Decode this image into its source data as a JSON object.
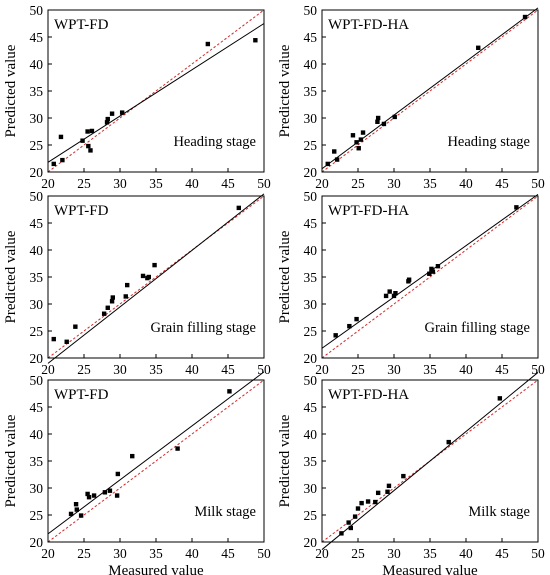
{
  "chart_data": [
    {
      "type": "scatter",
      "model": "WPT-FD",
      "stage": "Heading stage",
      "xlabel": "",
      "ylabel": "Predicted value",
      "xticks": [
        20,
        25,
        30,
        35,
        40,
        45,
        50
      ],
      "yticks": [
        20,
        25,
        30,
        35,
        40,
        45,
        50
      ],
      "xlim": [
        20,
        50
      ],
      "ylim": [
        20,
        50
      ],
      "points": [
        [
          20.8,
          21.5
        ],
        [
          21.8,
          26.5
        ],
        [
          22.0,
          22.2
        ],
        [
          24.8,
          25.8
        ],
        [
          25.5,
          27.5
        ],
        [
          25.6,
          24.8
        ],
        [
          25.9,
          24.0
        ],
        [
          26.1,
          27.6
        ],
        [
          28.2,
          29.2
        ],
        [
          28.3,
          29.8
        ],
        [
          28.9,
          30.8
        ],
        [
          30.3,
          31.0
        ],
        [
          42.2,
          43.7
        ],
        [
          48.8,
          44.4
        ]
      ],
      "fit_line": [
        [
          20,
          21.8
        ],
        [
          50,
          47.5
        ]
      ],
      "reference_line": [
        [
          20,
          20
        ],
        [
          50,
          50
        ]
      ]
    },
    {
      "type": "scatter",
      "model": "WPT-FD-HA",
      "stage": "Heading stage",
      "xlabel": "",
      "ylabel": "Predicted value",
      "xticks": [
        20,
        25,
        30,
        35,
        40,
        45,
        50
      ],
      "yticks": [
        20,
        25,
        30,
        35,
        40,
        45,
        50
      ],
      "xlim": [
        20,
        50
      ],
      "ylim": [
        20,
        50
      ],
      "points": [
        [
          20.8,
          21.5
        ],
        [
          21.7,
          23.8
        ],
        [
          22.1,
          22.3
        ],
        [
          24.3,
          26.8
        ],
        [
          24.8,
          25.5
        ],
        [
          25.1,
          24.4
        ],
        [
          25.4,
          26.0
        ],
        [
          25.7,
          27.3
        ],
        [
          27.7,
          29.3
        ],
        [
          27.8,
          30.0
        ],
        [
          28.6,
          28.9
        ],
        [
          30.1,
          30.2
        ],
        [
          41.7,
          43.0
        ],
        [
          48.2,
          48.7
        ]
      ],
      "fit_line": [
        [
          20,
          20.6
        ],
        [
          50,
          50.4
        ]
      ],
      "reference_line": [
        [
          20,
          20
        ],
        [
          50,
          50
        ]
      ]
    },
    {
      "type": "scatter",
      "model": "WPT-FD",
      "stage": "Grain filling stage",
      "xlabel": "",
      "ylabel": "Predicted value",
      "xticks": [
        20,
        25,
        30,
        35,
        40,
        45,
        50
      ],
      "yticks": [
        20,
        25,
        30,
        35,
        40,
        45,
        50
      ],
      "xlim": [
        20,
        50
      ],
      "ylim": [
        20,
        50
      ],
      "points": [
        [
          20.8,
          23.5
        ],
        [
          22.6,
          23.0
        ],
        [
          23.8,
          25.8
        ],
        [
          27.8,
          28.2
        ],
        [
          28.3,
          29.3
        ],
        [
          28.9,
          30.5
        ],
        [
          29.0,
          31.2
        ],
        [
          30.8,
          31.4
        ],
        [
          31.0,
          33.5
        ],
        [
          33.2,
          35.2
        ],
        [
          33.8,
          34.8
        ],
        [
          34.0,
          35.0
        ],
        [
          34.8,
          37.2
        ],
        [
          46.5,
          47.8
        ]
      ],
      "fit_line": [
        [
          20,
          19.0
        ],
        [
          50,
          50.4
        ]
      ],
      "reference_line": [
        [
          20,
          20
        ],
        [
          50,
          50
        ]
      ]
    },
    {
      "type": "scatter",
      "model": "WPT-FD-HA",
      "stage": "Grain filling stage",
      "xlabel": "",
      "ylabel": "Predicted value",
      "xticks": [
        20,
        25,
        30,
        35,
        40,
        45,
        50
      ],
      "yticks": [
        20,
        25,
        30,
        35,
        40,
        45,
        50
      ],
      "xlim": [
        20,
        50
      ],
      "ylim": [
        20,
        50
      ],
      "points": [
        [
          21.9,
          24.2
        ],
        [
          23.8,
          25.9
        ],
        [
          24.8,
          27.2
        ],
        [
          28.9,
          31.5
        ],
        [
          29.4,
          32.3
        ],
        [
          30.0,
          31.5
        ],
        [
          30.2,
          32.0
        ],
        [
          32.0,
          34.2
        ],
        [
          32.1,
          34.5
        ],
        [
          34.9,
          35.6
        ],
        [
          35.2,
          36.5
        ],
        [
          35.4,
          36.0
        ],
        [
          36.1,
          37.0
        ],
        [
          47.0,
          47.9
        ]
      ],
      "fit_line": [
        [
          20,
          21.8
        ],
        [
          50,
          50.3
        ]
      ],
      "reference_line": [
        [
          20,
          20
        ],
        [
          50,
          50
        ]
      ]
    },
    {
      "type": "scatter",
      "model": "WPT-FD",
      "stage": "Milk stage",
      "xlabel": "Measured value",
      "ylabel": "Predicted value",
      "xticks": [
        20,
        25,
        30,
        35,
        40,
        45,
        50
      ],
      "yticks": [
        20,
        25,
        30,
        35,
        40,
        45,
        50
      ],
      "xlim": [
        20,
        50
      ],
      "ylim": [
        20,
        50
      ],
      "points": [
        [
          23.2,
          25.2
        ],
        [
          23.9,
          27.0
        ],
        [
          24.0,
          26.0
        ],
        [
          24.6,
          24.9
        ],
        [
          25.5,
          28.9
        ],
        [
          25.7,
          28.3
        ],
        [
          26.4,
          28.6
        ],
        [
          27.9,
          29.2
        ],
        [
          28.6,
          29.5
        ],
        [
          29.6,
          28.6
        ],
        [
          29.7,
          32.6
        ],
        [
          31.7,
          35.9
        ],
        [
          38.0,
          37.3
        ],
        [
          45.2,
          47.9
        ]
      ],
      "fit_line": [
        [
          20,
          21.5
        ],
        [
          50,
          51.5
        ]
      ],
      "reference_line": [
        [
          20,
          20
        ],
        [
          50,
          50
        ]
      ]
    },
    {
      "type": "scatter",
      "model": "WPT-FD-HA",
      "stage": "Milk stage",
      "xlabel": "Measured value",
      "ylabel": "Predicted value",
      "xticks": [
        20,
        25,
        30,
        35,
        40,
        45,
        50
      ],
      "yticks": [
        20,
        25,
        30,
        35,
        40,
        45,
        50
      ],
      "xlim": [
        20,
        50
      ],
      "ylim": [
        20,
        50
      ],
      "points": [
        [
          22.7,
          21.6
        ],
        [
          23.7,
          23.6
        ],
        [
          24.0,
          22.6
        ],
        [
          24.6,
          24.7
        ],
        [
          25.0,
          26.2
        ],
        [
          25.5,
          27.2
        ],
        [
          26.4,
          27.5
        ],
        [
          27.4,
          27.4
        ],
        [
          27.8,
          29.1
        ],
        [
          29.1,
          29.3
        ],
        [
          29.3,
          30.4
        ],
        [
          31.3,
          32.2
        ],
        [
          37.6,
          38.5
        ],
        [
          44.7,
          46.6
        ]
      ],
      "fit_line": [
        [
          20,
          18.6
        ],
        [
          50,
          51.4
        ]
      ],
      "reference_line": [
        [
          20,
          20
        ],
        [
          50,
          50
        ]
      ]
    }
  ],
  "colors": {
    "points": "#000000",
    "fit_line": "#000000",
    "reference_line": "#d42a2a"
  }
}
